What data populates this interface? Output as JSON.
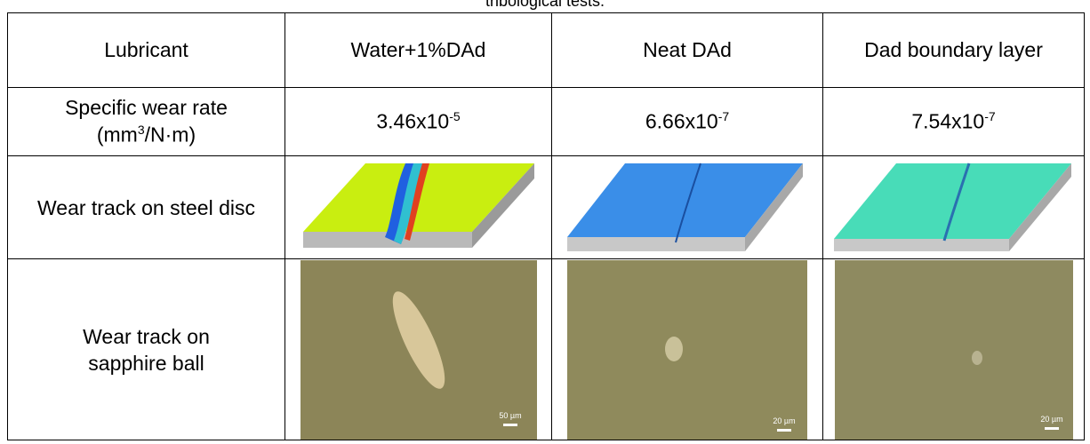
{
  "caption": "tribological tests.",
  "table": {
    "header": [
      "Lubricant",
      "Water+1%DAd",
      "Neat DAd",
      "Dad boundary layer"
    ],
    "wear_rate": {
      "label_line1": "Specific wear rate",
      "label_unit_pre": "(mm",
      "label_unit_sup": "3",
      "label_unit_post": "/N·m)",
      "cells": [
        {
          "base": "3.46x10",
          "exp": "-5"
        },
        {
          "base": "6.66x10",
          "exp": "-7"
        },
        {
          "base": "7.54x10",
          "exp": "-7"
        }
      ]
    },
    "steel_disc": {
      "label": "Wear track on steel disc"
    },
    "sapphire_ball": {
      "label": "Wear track on sapphire ball",
      "scale_labels": [
        "50 µm",
        "20 µm",
        "20 µm"
      ]
    }
  }
}
